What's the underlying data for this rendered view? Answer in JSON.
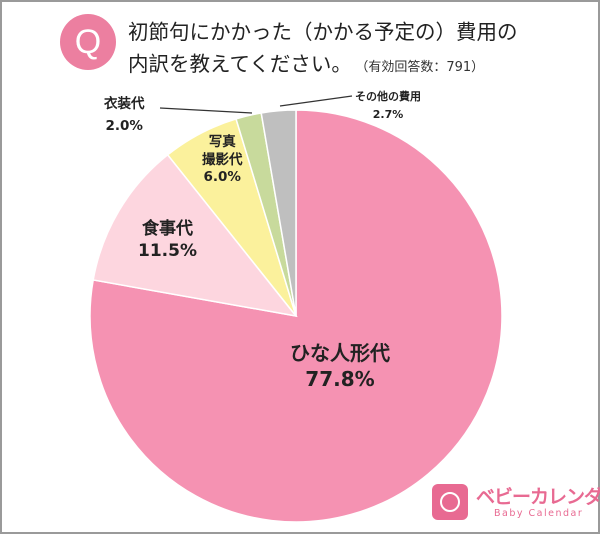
{
  "header": {
    "badge": "Q",
    "title_line1": "初節句にかかった（かかる予定の）費用の",
    "title_line2": "内訳を教えてください。",
    "note": "（有効回答数：791）"
  },
  "chart_data": {
    "type": "pie",
    "start": "top",
    "direction": "clockwise",
    "slices": [
      {
        "label": "ひな人形代",
        "value": 77.8,
        "value_label": "77.8%",
        "color": "#f592b2"
      },
      {
        "label": "食事代",
        "value": 11.5,
        "value_label": "11.5%",
        "color": "#fdd6df"
      },
      {
        "label": "写真撮影代",
        "label_lines": [
          "写真",
          "撮影代"
        ],
        "value": 6.0,
        "value_label": "6.0%",
        "color": "#fbf19c"
      },
      {
        "label": "衣装代",
        "value": 2.0,
        "value_label": "2.0%",
        "color": "#c8da9c"
      },
      {
        "label": "その他の費用",
        "value": 2.7,
        "value_label": "2.7%",
        "color": "#bfbfbf"
      }
    ]
  },
  "logo": {
    "name": "ベビーカレンダー",
    "sub": "Baby Calendar",
    "color": "#e86a92"
  }
}
